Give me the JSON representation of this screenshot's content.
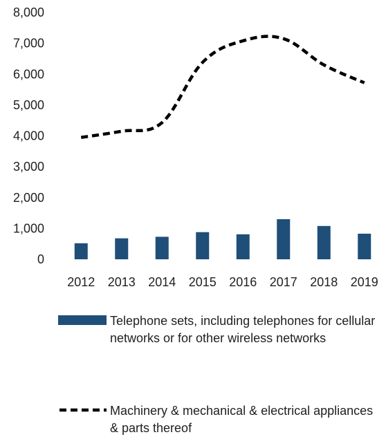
{
  "chart_data": {
    "type": "bar+line",
    "categories": [
      "2012",
      "2013",
      "2014",
      "2015",
      "2016",
      "2017",
      "2018",
      "2019"
    ],
    "series": [
      {
        "name": "Telephone sets, including telephones for cellular networks or for other wireless networks",
        "type": "bar",
        "color": "#1f4e79",
        "values": [
          520,
          680,
          730,
          880,
          810,
          1300,
          1080,
          830
        ]
      },
      {
        "name": "Machinery & mechanical & electrical appliances & parts thereof",
        "type": "line",
        "style": "dashed",
        "color": "#000000",
        "values": [
          3950,
          4150,
          4430,
          6380,
          7080,
          7150,
          6300,
          5720
        ]
      }
    ],
    "y_ticks": [
      "0",
      "1,000",
      "2,000",
      "3,000",
      "4,000",
      "5,000",
      "6,000",
      "7,000",
      "8,000"
    ],
    "ylim": [
      0,
      8000
    ],
    "grid": false,
    "legend_position": "bottom",
    "title": "",
    "xlabel": "",
    "ylabel": ""
  }
}
